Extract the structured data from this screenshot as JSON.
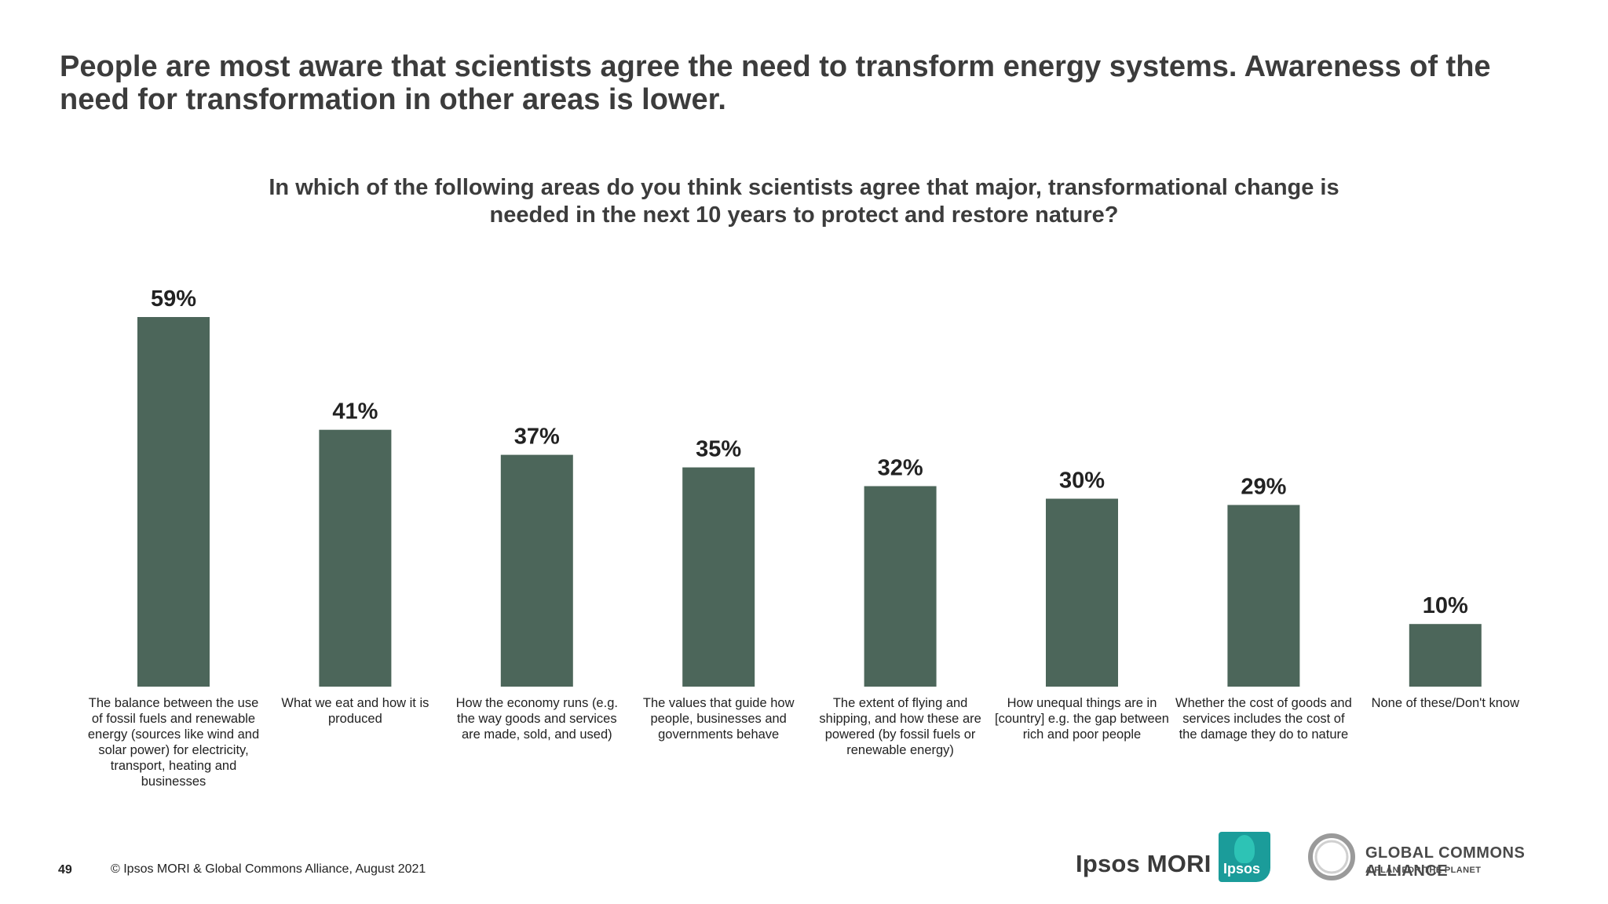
{
  "headline": "People are most aware that scientists agree the need to transform energy systems. Awareness of the need for transformation in other areas is lower.",
  "question": "In which of the following areas do you think scientists agree that major, transformational change is needed in the next 10 years to protect and restore nature?",
  "chart_data": {
    "type": "bar",
    "categories": [
      "The balance between the use of fossil fuels and renewable energy (sources like wind and solar power) for electricity, transport, heating and businesses",
      "What we eat and how it is produced",
      "How the economy runs (e.g. the way goods and services are made, sold, and used)",
      "The values that guide how people, businesses and governments behave",
      "The extent of flying and shipping, and how these are powered (by fossil fuels or renewable energy)",
      "How unequal things are in [country] e.g. the gap between rich and poor people",
      "Whether the cost of goods and services includes the cost of the damage they do to nature",
      "None of these/Don't know"
    ],
    "values": [
      59,
      41,
      37,
      35,
      32,
      30,
      29,
      10
    ],
    "value_labels": [
      "59%",
      "41%",
      "37%",
      "35%",
      "32%",
      "30%",
      "29%",
      "10%"
    ],
    "bar_color": "#4c665a",
    "ylim": [
      0,
      59
    ],
    "grid": false,
    "legend": "none"
  },
  "footer": {
    "page_number": "49",
    "copyright": "© Ipsos MORI & Global Commons Alliance, August 2021"
  },
  "logos": {
    "ipsos_mori": "Ipsos MORI",
    "ipsos_badge": "Ipsos",
    "gca_title": "GLOBAL COMMONS ALLIANCE",
    "gca_subtitle": "A PLAN FOR THE PLANET"
  }
}
